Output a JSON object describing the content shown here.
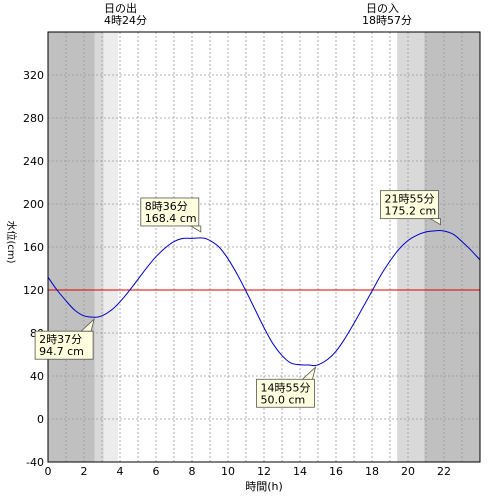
{
  "sun": {
    "sunrise_label": "日の出",
    "sunrise_time": "4時24分",
    "sunset_label": "日の入",
    "sunset_time": "18時57分"
  },
  "colors": {
    "night": "#c0c0c0",
    "twilight": "#d9d9d9",
    "twilight_light": "#ececec",
    "day": "#ffffff",
    "curve": "#0000cc",
    "mean_line": "#dd0000",
    "callout_fill": "#ffffe0",
    "grid": "#999999"
  },
  "chart_data": {
    "type": "line",
    "title": "",
    "xlabel": "時間(h)",
    "ylabel": "水位(cm)",
    "xlim": [
      0,
      24
    ],
    "ylim": [
      -40,
      360
    ],
    "x_ticks": [
      0,
      2,
      4,
      6,
      8,
      10,
      12,
      14,
      16,
      18,
      20,
      22
    ],
    "y_ticks": [
      -40,
      0,
      40,
      80,
      120,
      160,
      200,
      240,
      280,
      320
    ],
    "mean_level": 120,
    "sunrise_hour": 4.4,
    "sunset_hour": 18.95,
    "shading": [
      {
        "from": 0,
        "to": 2.6,
        "tone": "night"
      },
      {
        "from": 2.6,
        "to": 3.1,
        "tone": "twilight"
      },
      {
        "from": 3.1,
        "to": 3.9,
        "tone": "twilight_light"
      },
      {
        "from": 3.9,
        "to": 19.4,
        "tone": "day"
      },
      {
        "from": 19.4,
        "to": 20.9,
        "tone": "twilight"
      },
      {
        "from": 20.9,
        "to": 24,
        "tone": "night"
      }
    ],
    "extremes": [
      {
        "hour": 2.6167,
        "value": 94.7,
        "time_label": "2時37分",
        "value_label": "94.7 cm",
        "box": "below-left"
      },
      {
        "hour": 8.6,
        "value": 168.4,
        "time_label": "8時36分",
        "value_label": "168.4 cm",
        "box": "above-left"
      },
      {
        "hour": 14.9167,
        "value": 50.0,
        "time_label": "14時55分",
        "value_label": "50.0 cm",
        "box": "below-left"
      },
      {
        "hour": 21.9167,
        "value": 175.2,
        "time_label": "21時55分",
        "value_label": "175.2 cm",
        "box": "above-left"
      }
    ],
    "series": [
      {
        "x": [
          0,
          0.5,
          1,
          1.5,
          2,
          2.6167,
          3,
          3.5,
          4,
          4.5,
          5,
          5.5,
          6,
          6.5,
          7,
          7.5,
          8,
          8.6,
          9,
          9.5,
          10,
          10.5,
          11,
          11.5,
          12,
          12.5,
          13,
          13.5,
          14,
          14.5,
          14.9167,
          15.5,
          16,
          16.5,
          17,
          17.5,
          18,
          18.5,
          19,
          19.5,
          20,
          20.5,
          21,
          21.5,
          21.9167,
          22.5,
          23,
          23.5,
          24
        ],
        "y": [
          132,
          120,
          110,
          101,
          96,
          94.7,
          96,
          101,
          109,
          119,
          130,
          141,
          151,
          159,
          165,
          168,
          168,
          168.4,
          166,
          160,
          149,
          135,
          119,
          102,
          85,
          70,
          59,
          52,
          50.5,
          50.2,
          50.0,
          55,
          63,
          75,
          89,
          104,
          119,
          134,
          147,
          158,
          166,
          171,
          174,
          175,
          175.2,
          172,
          165,
          157,
          148
        ]
      }
    ]
  }
}
